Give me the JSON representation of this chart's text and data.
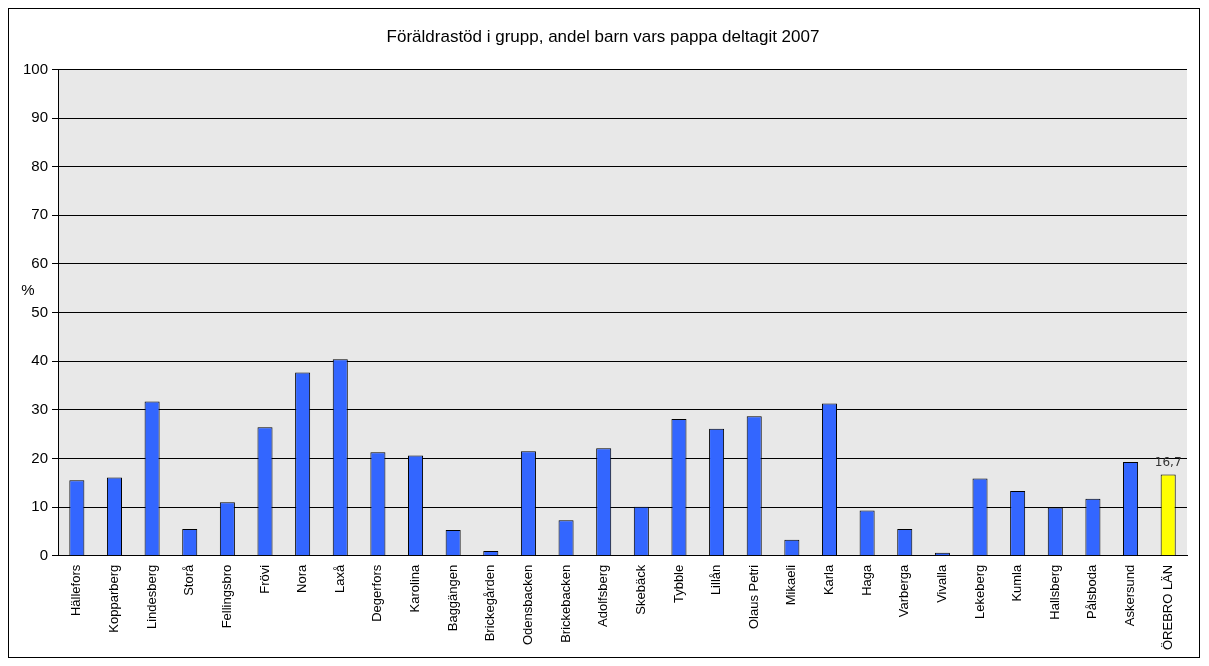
{
  "chart_data": {
    "type": "bar",
    "title": "Föräldrastöd i grupp, andel barn vars pappa deltagit 2007",
    "ylabel": "%",
    "categories": [
      "Hällefors",
      "Kopparberg",
      "Lindesberg",
      "Storå",
      "Fellingsbro",
      "Frövi",
      "Nora",
      "Laxå",
      "Degerfors",
      "Karolina",
      "Baggängen",
      "Brickegården",
      "Odensbacken",
      "Brickebacken",
      "Adolfsberg",
      "Skebäck",
      "Tybble",
      "Lillån",
      "Olaus Petri",
      "Mikaeli",
      "Karla",
      "Haga",
      "Varberga",
      "Vivalla",
      "Lekeberg",
      "Kumla",
      "Hallsberg",
      "Pålsboda",
      "Askersund",
      "ÖREBRO LÄN"
    ],
    "values": [
      15.5,
      16.1,
      31.7,
      5.5,
      11.0,
      26.4,
      37.7,
      40.4,
      21.3,
      20.6,
      5.3,
      1.0,
      21.5,
      7.3,
      22.1,
      10.1,
      28.1,
      26.1,
      28.7,
      3.3,
      31.3,
      9.3,
      5.5,
      0.6,
      15.9,
      13.3,
      9.9,
      11.7,
      19.3,
      16.7
    ],
    "colors": [
      "#3366ff",
      "#3366ff",
      "#3366ff",
      "#3366ff",
      "#3366ff",
      "#3366ff",
      "#3366ff",
      "#3366ff",
      "#3366ff",
      "#3366ff",
      "#3366ff",
      "#3366ff",
      "#3366ff",
      "#3366ff",
      "#3366ff",
      "#3366ff",
      "#3366ff",
      "#3366ff",
      "#3366ff",
      "#3366ff",
      "#3366ff",
      "#3366ff",
      "#3366ff",
      "#3366ff",
      "#3366ff",
      "#3366ff",
      "#3366ff",
      "#3366ff",
      "#3366ff",
      "#ffff00"
    ],
    "value_labels": [
      null,
      null,
      null,
      null,
      null,
      null,
      null,
      null,
      null,
      null,
      null,
      null,
      null,
      null,
      null,
      null,
      null,
      null,
      null,
      null,
      null,
      null,
      null,
      null,
      null,
      null,
      null,
      null,
      null,
      "16,7"
    ],
    "ylim": [
      0,
      100
    ],
    "yticks": [
      0,
      10,
      20,
      30,
      40,
      50,
      60,
      70,
      80,
      90,
      100
    ],
    "grid": "y",
    "legend": false
  }
}
